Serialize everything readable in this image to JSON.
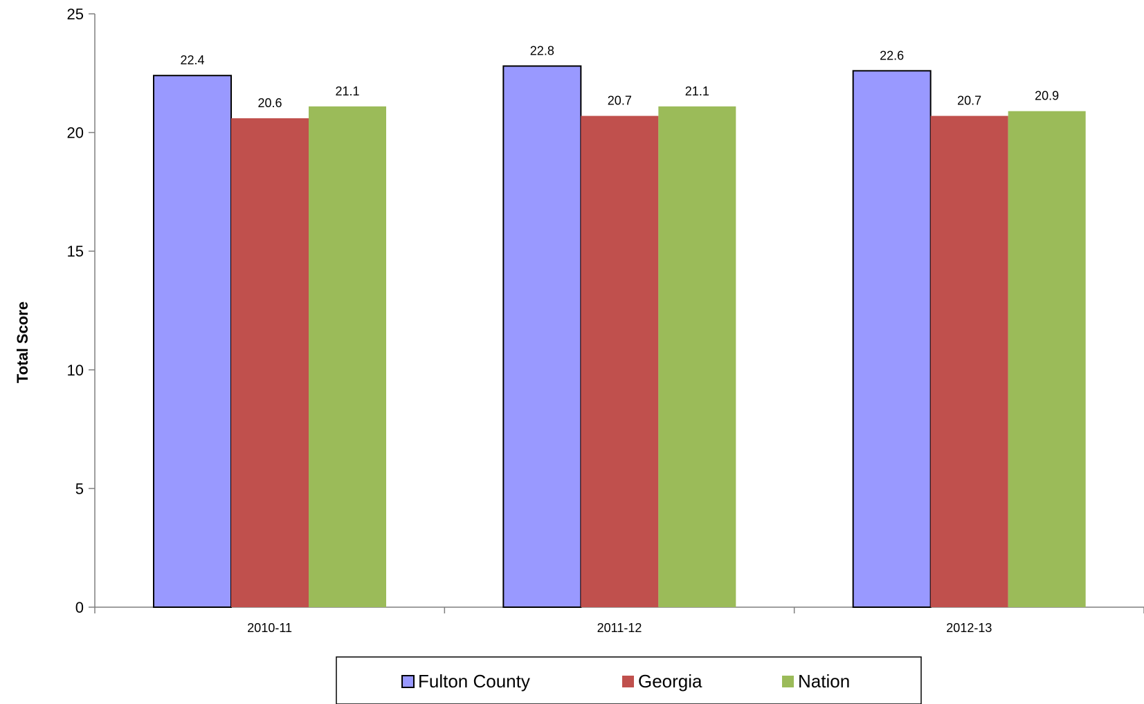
{
  "chart_data": {
    "type": "bar",
    "title": "",
    "xlabel": "",
    "ylabel": "Total Score",
    "ylim": [
      0,
      25
    ],
    "yticks": [
      0,
      5,
      10,
      15,
      20,
      25
    ],
    "categories": [
      "2010-11",
      "2011-12",
      "2012-13"
    ],
    "series": [
      {
        "name": "Fulton County",
        "values": [
          22.4,
          22.8,
          22.6
        ],
        "color": "#9999FF",
        "outlined": true
      },
      {
        "name": "Georgia",
        "values": [
          20.6,
          20.7,
          20.7
        ],
        "color": "#C0504D",
        "outlined": false
      },
      {
        "name": "Nation",
        "values": [
          21.1,
          21.1,
          20.9
        ],
        "color": "#9BBB59",
        "outlined": false
      }
    ],
    "grid": false,
    "legend_position": "bottom",
    "data_labels": true
  }
}
